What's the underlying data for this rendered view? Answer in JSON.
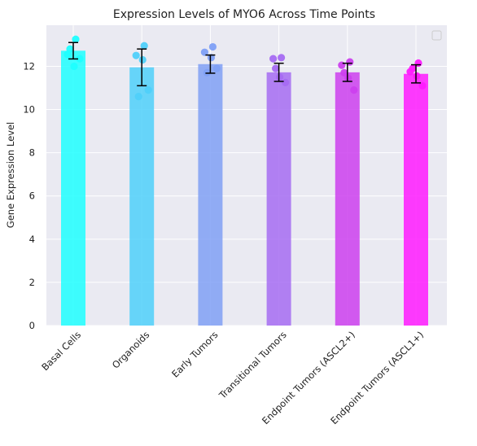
{
  "chart_data": {
    "type": "bar",
    "title": "Expression Levels of MYO6 Across Time Points",
    "xlabel": "",
    "ylabel": "Gene Expression Level",
    "ylim": [
      0,
      13.9
    ],
    "yticks": [
      0,
      2,
      4,
      6,
      8,
      10,
      12
    ],
    "grid": true,
    "legend": "top-right (empty)",
    "categories": [
      "Basal Cells",
      "Organoids",
      "Early Tumors",
      "Transitional Tumors",
      "Endpoint Tumors (ASCL2+)",
      "Endpoint Tumors (ASCL1+)"
    ],
    "values": [
      12.72,
      11.95,
      12.1,
      11.72,
      11.72,
      11.65
    ],
    "errors": [
      0.38,
      0.85,
      0.42,
      0.42,
      0.42,
      0.42
    ],
    "points": [
      [
        13.25,
        12.55,
        12.0,
        12.35,
        12.8
      ],
      [
        12.95,
        12.5,
        12.3,
        10.9,
        10.6
      ],
      [
        12.9,
        12.65,
        12.4,
        11.9,
        11.7
      ],
      [
        12.4,
        12.35,
        11.5,
        11.25,
        11.9
      ],
      [
        12.2,
        12.05,
        11.45,
        10.9,
        11.7
      ],
      [
        12.15,
        11.75,
        11.55,
        11.1,
        11.9
      ]
    ],
    "colors": [
      "#1fffff",
      "#4fd0fa",
      "#80a0f5",
      "#a66cf2",
      "#cc40ee",
      "#ff1aff"
    ]
  }
}
